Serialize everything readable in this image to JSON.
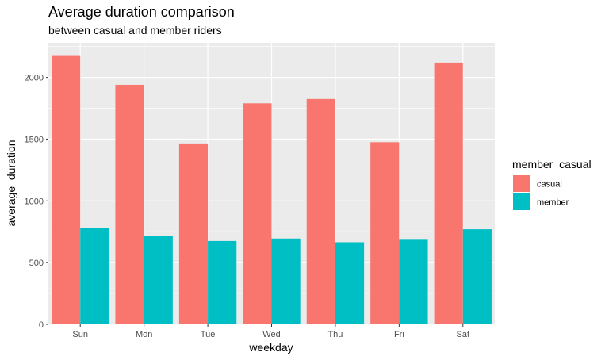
{
  "chart_data": {
    "type": "bar",
    "title": "Average duration comparison",
    "subtitle": "between casual and member riders",
    "xlabel": "weekday",
    "ylabel": "average_duration",
    "categories": [
      "Sun",
      "Mon",
      "Tue",
      "Wed",
      "Thu",
      "Fri",
      "Sat"
    ],
    "series": [
      {
        "name": "casual",
        "color": "#F8766D",
        "values": [
          2180,
          1940,
          1465,
          1790,
          1825,
          1475,
          2120
        ]
      },
      {
        "name": "member",
        "color": "#00BFC4",
        "values": [
          780,
          715,
          675,
          695,
          665,
          685,
          770
        ]
      }
    ],
    "ylim": [
      0,
      2280
    ],
    "yticks": [
      0,
      500,
      1000,
      1500,
      2000
    ],
    "grid": true,
    "legend": {
      "title": "member_casual",
      "position": "right"
    },
    "panel_background": "#EBEBEB"
  }
}
